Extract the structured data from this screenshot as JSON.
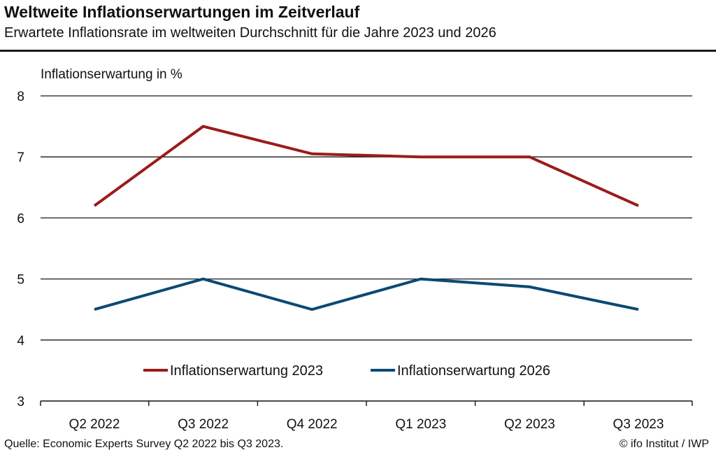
{
  "header": {
    "title": "Weltweite Inflationserwartungen im Zeitverlauf",
    "subtitle": "Erwartete Inflationsrate im weltweiten Durchschnitt für die Jahre 2023 und 2026"
  },
  "footer": {
    "source": "Quelle: Economic Experts Survey Q2 2022 bis Q3 2023.",
    "credit": "© ifo Institut / IWP"
  },
  "colors": {
    "series_2023": "#9b1c1c",
    "series_2026": "#0b4a73",
    "grid": "#1a1a1a"
  },
  "chart_data": {
    "type": "line",
    "title": "Weltweite Inflationserwartungen im Zeitverlauf",
    "subtitle": "Erwartete Inflationsrate im weltweiten Durchschnitt für die Jahre 2023 und 2026",
    "xlabel": "",
    "ylabel": "Inflationserwartung in %",
    "categories": [
      "Q2 2022",
      "Q3 2022",
      "Q4 2022",
      "Q1 2023",
      "Q2 2023",
      "Q3 2023"
    ],
    "ylim": [
      3,
      8
    ],
    "yticks": [
      "3",
      "4",
      "5",
      "6",
      "7",
      "8"
    ],
    "grid": true,
    "legend": "bottom-center",
    "series": [
      {
        "name": "Inflationserwartung 2023",
        "values": [
          6.2,
          7.5,
          7.05,
          7.0,
          7.0,
          6.2
        ]
      },
      {
        "name": "Inflationserwartung 2026",
        "values": [
          4.5,
          5.0,
          4.5,
          5.0,
          4.87,
          4.5
        ]
      }
    ]
  }
}
